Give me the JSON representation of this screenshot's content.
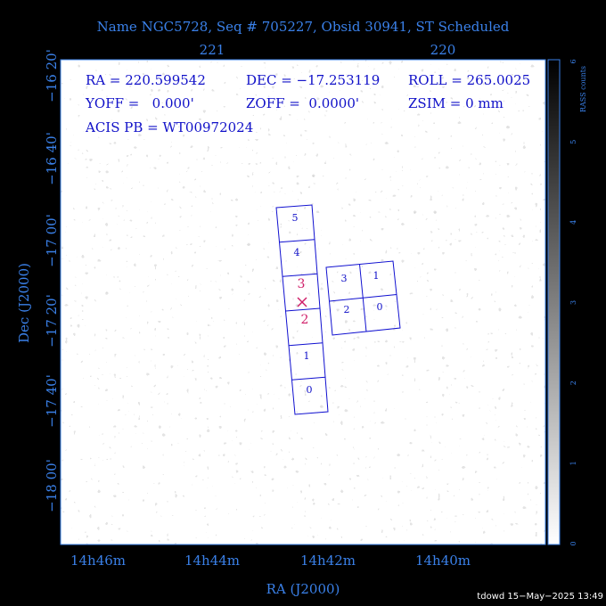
{
  "header": {
    "title": "Name NGC5728, Seq # 705227, Obsid 30941, ST Scheduled"
  },
  "info": {
    "ra": "RA = 220.599542",
    "dec": "DEC = −17.253119",
    "roll": "ROLL = 265.0025",
    "yoff": "YOFF =   0.000'",
    "zoff": "ZOFF =  0.0000'",
    "zsim": "ZSIM = 0 mm",
    "acis_pb": "ACIS PB = WT00972024"
  },
  "axes": {
    "top_ticks": [
      "221",
      "220"
    ],
    "bottom_ticks": [
      "14h46m",
      "14h44m",
      "14h42m",
      "14h40m"
    ],
    "left_ticks": [
      "−16 20'",
      "−16 40'",
      "−17 00'",
      "−17 20'",
      "−17 40'",
      "−18 00'"
    ],
    "x_label": "RA (J2000)",
    "y_label": "Dec (J2000)"
  },
  "colorbar": {
    "label": "RASS counts",
    "ticks": [
      "0",
      "1",
      "2",
      "3",
      "4",
      "5",
      "6"
    ]
  },
  "chips": {
    "s_array": [
      "5",
      "4",
      "3",
      "2",
      "1",
      "0"
    ],
    "i_array": [
      "3",
      "1",
      "2",
      "0"
    ]
  },
  "footer": "tdowd 15−May−2025 13:49"
}
